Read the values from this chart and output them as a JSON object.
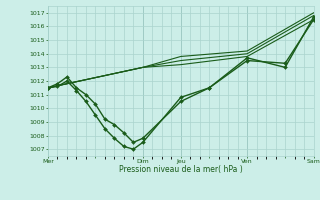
{
  "title": "",
  "xlabel": "Pression niveau de la mer( hPa )",
  "ylabel": "",
  "ylim": [
    1006.5,
    1017.5
  ],
  "yticks": [
    1007,
    1008,
    1009,
    1010,
    1011,
    1012,
    1013,
    1014,
    1015,
    1016,
    1017
  ],
  "xtick_labels": [
    "Mer",
    "",
    "Dim",
    "Jeu",
    "",
    "Ven",
    "",
    "Sam"
  ],
  "xtick_positions": [
    0,
    5,
    10,
    14,
    17,
    21,
    25,
    28
  ],
  "vlines": [
    0,
    10,
    14,
    21,
    28
  ],
  "bg_color": "#cceee8",
  "grid_color": "#aad4ce",
  "line_color": "#1a5c1a",
  "series": [
    {
      "x": [
        0,
        1,
        2,
        3,
        4,
        5,
        6,
        7,
        8,
        9,
        10,
        14,
        17,
        21,
        25,
        28
      ],
      "y": [
        1011.5,
        1011.8,
        1012.3,
        1011.5,
        1011.0,
        1010.3,
        1009.2,
        1008.8,
        1008.2,
        1007.5,
        1007.8,
        1010.5,
        1011.5,
        1013.7,
        1013.0,
        1016.7
      ],
      "color": "#1a5c1a",
      "lw": 1.0,
      "marker": "D",
      "ms": 2.0
    },
    {
      "x": [
        0,
        1,
        2,
        3,
        4,
        5,
        6,
        7,
        8,
        9,
        10,
        14,
        17,
        21,
        25,
        28
      ],
      "y": [
        1011.5,
        1011.6,
        1012.0,
        1011.3,
        1010.5,
        1009.5,
        1008.5,
        1007.8,
        1007.2,
        1007.0,
        1007.5,
        1010.8,
        1011.5,
        1013.5,
        1013.3,
        1016.5
      ],
      "color": "#1a5c1a",
      "lw": 1.0,
      "marker": "D",
      "ms": 2.0
    },
    {
      "x": [
        0,
        10,
        14,
        21,
        28
      ],
      "y": [
        1011.5,
        1013.0,
        1013.2,
        1013.8,
        1016.5
      ],
      "color": "#1a5c1a",
      "lw": 0.8,
      "marker": null,
      "ms": 0
    },
    {
      "x": [
        0,
        10,
        14,
        21,
        28
      ],
      "y": [
        1011.5,
        1013.0,
        1013.5,
        1014.0,
        1016.8
      ],
      "color": "#1a5c1a",
      "lw": 0.8,
      "marker": null,
      "ms": 0
    },
    {
      "x": [
        0,
        10,
        14,
        21,
        28
      ],
      "y": [
        1011.5,
        1013.0,
        1013.8,
        1014.2,
        1017.0
      ],
      "color": "#1a5c1a",
      "lw": 0.8,
      "marker": null,
      "ms": 0
    }
  ],
  "figsize": [
    3.2,
    2.0
  ],
  "dpi": 100
}
